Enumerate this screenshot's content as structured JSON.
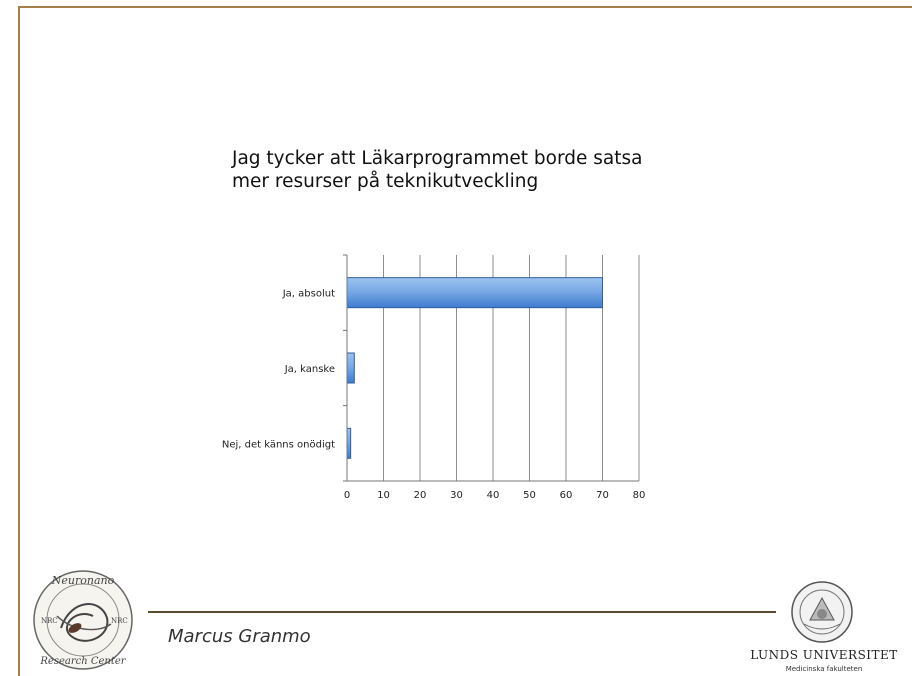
{
  "slide": {
    "title": "Jag tycker att Läkarprogrammet borde satsa\nmer resurser på teknikutveckling",
    "author": "Marcus Granmo",
    "university_name": "LUNDS UNIVERSITET",
    "university_subtitle": "Medicinska fakulteten",
    "left_logo_text": "Neuronano Research Center NRC"
  },
  "colors": {
    "frame": "#a3804a",
    "bar_fill_top": "#9cc3f0",
    "bar_fill_bottom": "#3d7ccc",
    "bar_stroke": "#2f5f9e",
    "grid": "#8c8c8c"
  },
  "chart_data": {
    "type": "bar",
    "orientation": "horizontal",
    "title": "Jag tycker att Läkarprogrammet borde satsa mer resurser på teknikutveckling",
    "categories": [
      "Ja, absolut",
      "Ja, kanske",
      "Nej, det känns onödigt"
    ],
    "values": [
      70,
      2,
      1
    ],
    "xlim": [
      0,
      80
    ],
    "xticks": [
      0,
      10,
      20,
      30,
      40,
      50,
      60,
      70,
      80
    ],
    "grid": true,
    "legend": "none",
    "xlabel": "",
    "ylabel": ""
  }
}
